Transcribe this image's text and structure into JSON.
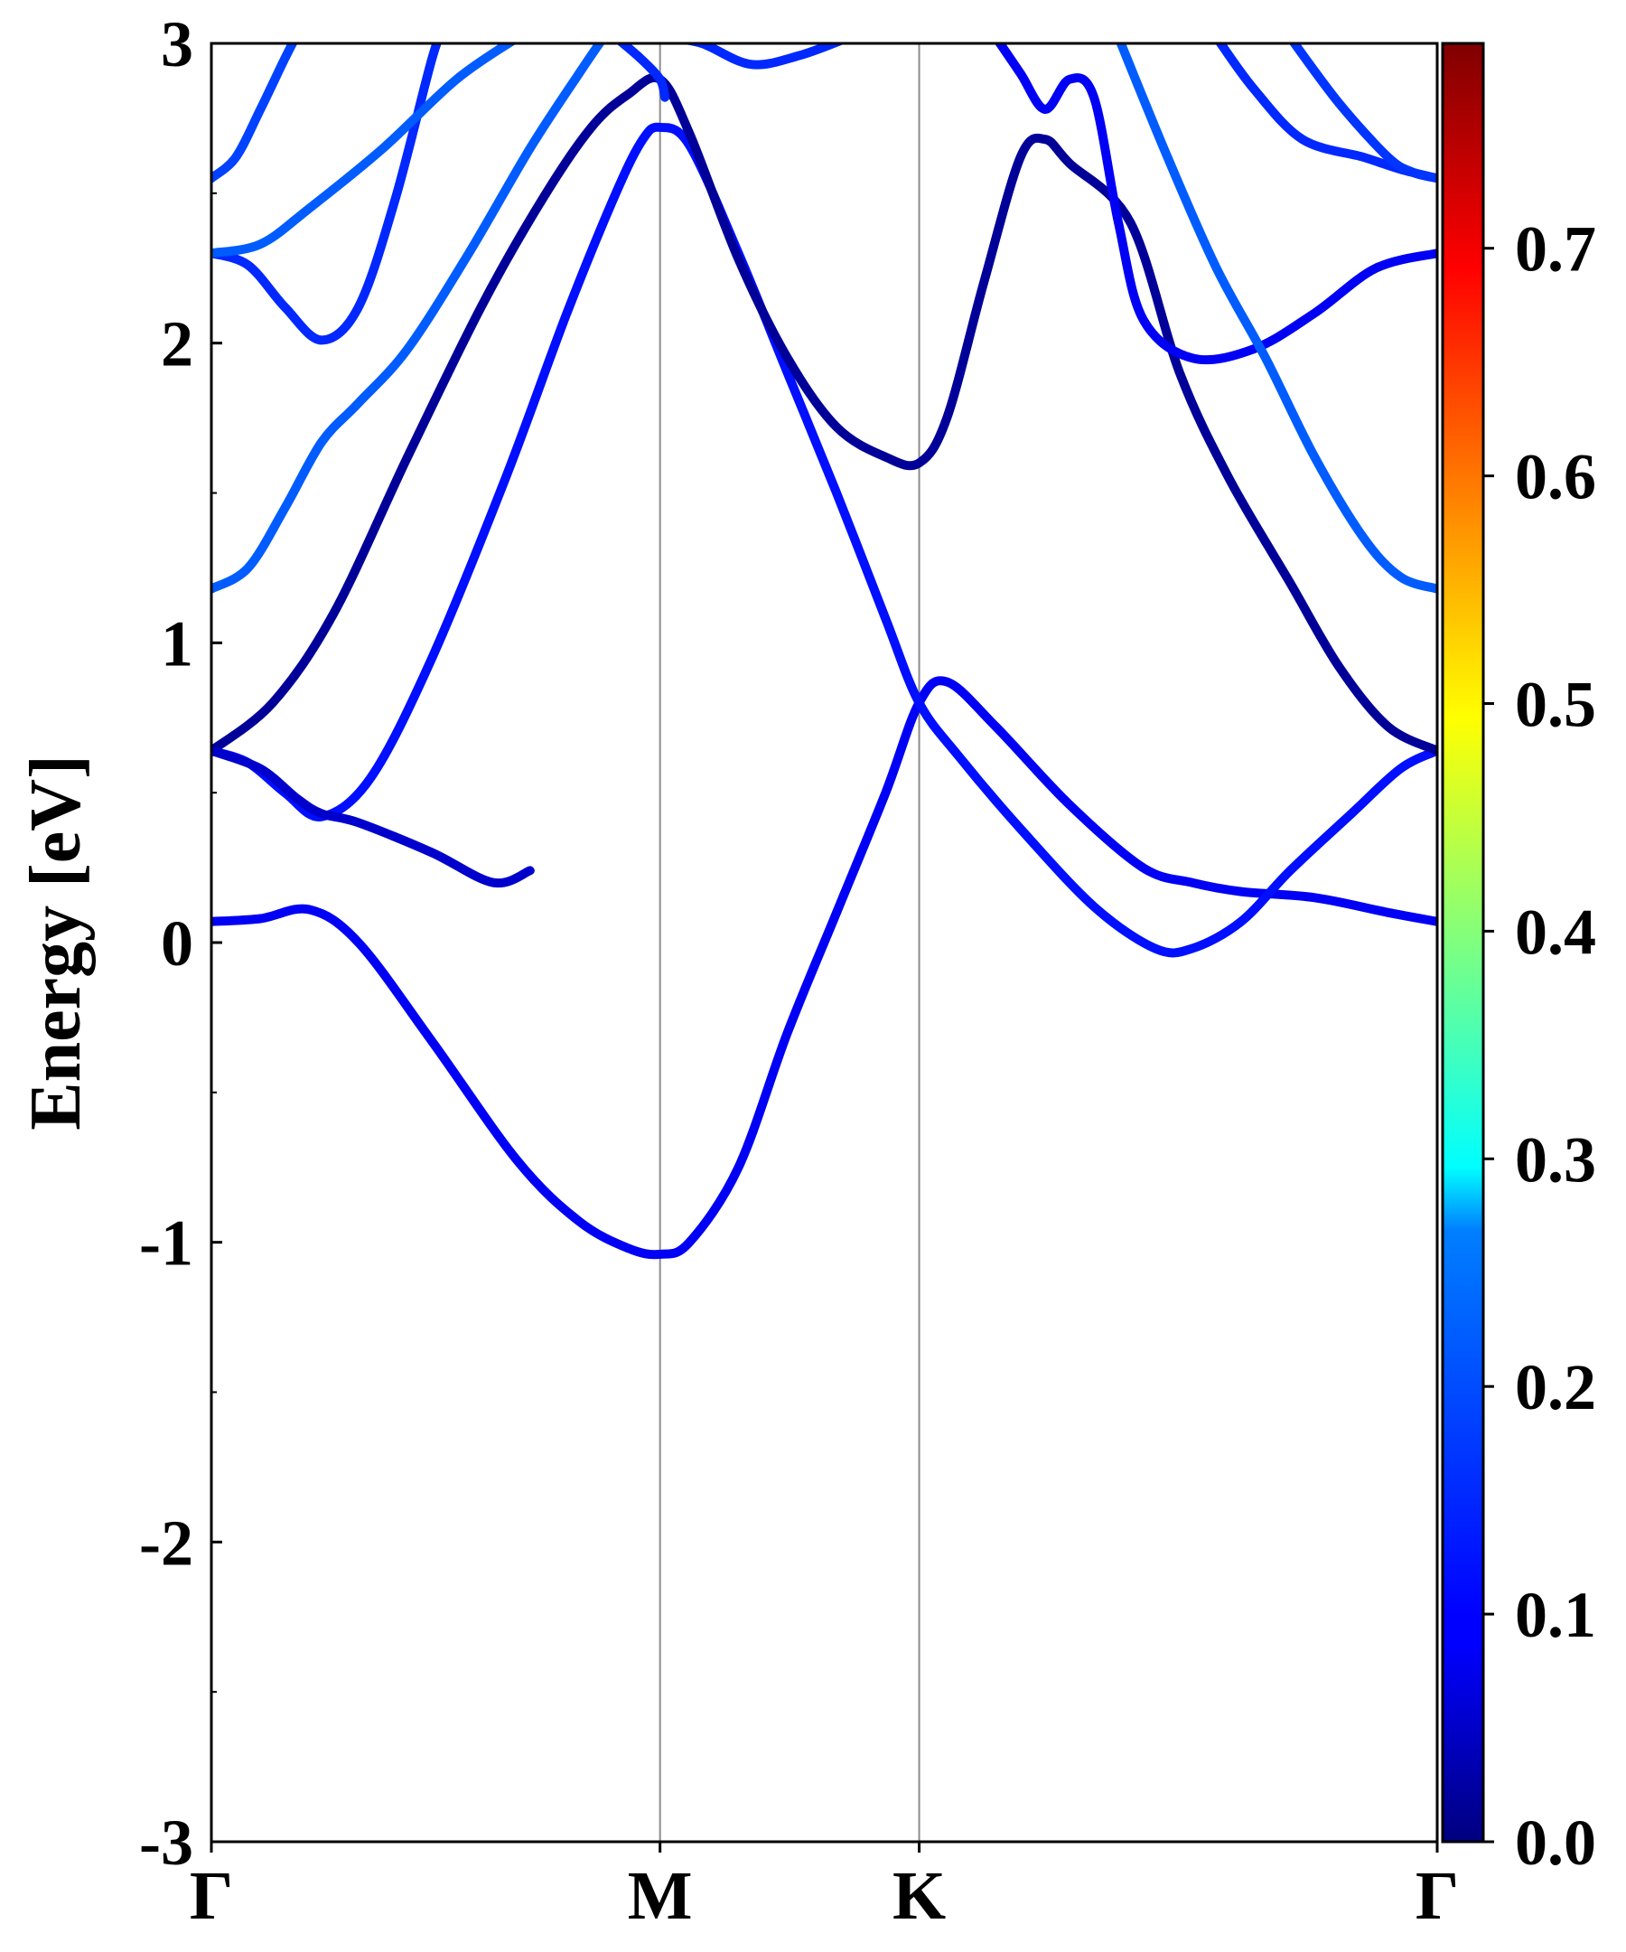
{
  "chart_data": {
    "type": "line",
    "title": "",
    "ylabel": "Energy [eV]",
    "xlabel": "",
    "ylim": [
      -3,
      3
    ],
    "xlim": [
      0,
      1
    ],
    "y_ticks": [
      {
        "value": -3,
        "label": "-3"
      },
      {
        "value": -2,
        "label": "-2"
      },
      {
        "value": -1,
        "label": "-1"
      },
      {
        "value": 0,
        "label": "0"
      },
      {
        "value": 1,
        "label": "1"
      },
      {
        "value": 2,
        "label": "2"
      },
      {
        "value": 3,
        "label": "3"
      }
    ],
    "y_minor_ticks": [
      -2.5,
      -1.5,
      -0.5,
      0.5,
      1.5,
      2.5
    ],
    "kpoints": [
      {
        "pos": 0.0,
        "label": "Γ"
      },
      {
        "pos": 0.366,
        "label": "M"
      },
      {
        "pos": 0.5774,
        "label": "K"
      },
      {
        "pos": 1.0,
        "label": "Γ"
      }
    ],
    "colorbar": {
      "colormap": "jet",
      "min": 0.0,
      "max": 0.79,
      "ticks": [
        {
          "value": 0.0,
          "label": "0.0"
        },
        {
          "value": 0.1,
          "label": "0.1"
        },
        {
          "value": 0.2,
          "label": "0.2"
        },
        {
          "value": 0.3,
          "label": "0.3"
        },
        {
          "value": 0.4,
          "label": "0.4"
        },
        {
          "value": 0.5,
          "label": "0.5"
        },
        {
          "value": 0.6,
          "label": "0.6"
        },
        {
          "value": 0.7,
          "label": "0.7"
        }
      ]
    },
    "series": [
      {
        "weight": 0.09,
        "points": [
          [
            0,
            0.07
          ],
          [
            0.04,
            0.08
          ],
          [
            0.08,
            0.11
          ],
          [
            0.12,
            0.0
          ],
          [
            0.18,
            -0.33
          ],
          [
            0.25,
            -0.73
          ],
          [
            0.3,
            -0.93
          ],
          [
            0.34,
            -1.02
          ],
          [
            0.366,
            -1.04
          ],
          [
            0.39,
            -1.0
          ],
          [
            0.43,
            -0.75
          ],
          [
            0.47,
            -0.3
          ],
          [
            0.51,
            0.1
          ],
          [
            0.55,
            0.5
          ],
          [
            0.5774,
            0.8
          ],
          [
            0.6,
            0.87
          ],
          [
            0.64,
            0.72
          ],
          [
            0.7,
            0.46
          ],
          [
            0.76,
            0.25
          ],
          [
            0.8,
            0.2
          ],
          [
            0.84,
            0.17
          ],
          [
            0.9,
            0.15
          ],
          [
            0.96,
            0.1
          ],
          [
            1.0,
            0.07
          ]
        ]
      },
      {
        "weight": 0.11,
        "points": [
          [
            0,
            0.64
          ],
          [
            0.03,
            0.6
          ],
          [
            0.06,
            0.5
          ],
          [
            0.09,
            0.42
          ],
          [
            0.13,
            0.55
          ],
          [
            0.18,
            0.95
          ],
          [
            0.24,
            1.55
          ],
          [
            0.29,
            2.1
          ],
          [
            0.33,
            2.5
          ],
          [
            0.352,
            2.68
          ],
          [
            0.366,
            2.72
          ],
          [
            0.39,
            2.66
          ],
          [
            0.43,
            2.3
          ],
          [
            0.47,
            1.9
          ],
          [
            0.51,
            1.5
          ],
          [
            0.55,
            1.08
          ],
          [
            0.5774,
            0.8
          ],
          [
            0.61,
            0.62
          ],
          [
            0.66,
            0.38
          ],
          [
            0.72,
            0.12
          ],
          [
            0.77,
            -0.02
          ],
          [
            0.8,
            -0.02
          ],
          [
            0.84,
            0.07
          ],
          [
            0.88,
            0.24
          ],
          [
            0.93,
            0.43
          ],
          [
            0.97,
            0.58
          ],
          [
            1.0,
            0.64
          ]
        ]
      },
      {
        "weight": 0.02,
        "points": [
          [
            0,
            0.64
          ],
          [
            0.05,
            0.8
          ],
          [
            0.1,
            1.1
          ],
          [
            0.16,
            1.62
          ],
          [
            0.22,
            2.12
          ],
          [
            0.27,
            2.48
          ],
          [
            0.31,
            2.72
          ],
          [
            0.34,
            2.83
          ],
          [
            0.366,
            2.88
          ],
          [
            0.39,
            2.7
          ],
          [
            0.43,
            2.28
          ],
          [
            0.47,
            1.95
          ],
          [
            0.51,
            1.72
          ],
          [
            0.55,
            1.62
          ],
          [
            0.5774,
            1.6
          ],
          [
            0.6,
            1.75
          ],
          [
            0.63,
            2.2
          ],
          [
            0.66,
            2.62
          ],
          [
            0.68,
            2.68
          ],
          [
            0.7,
            2.6
          ],
          [
            0.75,
            2.4
          ],
          [
            0.79,
            1.9
          ],
          [
            0.83,
            1.55
          ],
          [
            0.88,
            1.2
          ],
          [
            0.92,
            0.92
          ],
          [
            0.96,
            0.72
          ],
          [
            1.0,
            0.64
          ]
        ]
      },
      {
        "weight": 0.06,
        "points": [
          [
            0,
            0.64
          ],
          [
            0.04,
            0.58
          ],
          [
            0.07,
            0.48
          ],
          [
            0.09,
            0.43
          ],
          [
            0.12,
            0.4
          ],
          [
            0.18,
            0.3
          ],
          [
            0.23,
            0.2
          ],
          [
            0.26,
            0.24
          ]
        ]
      },
      {
        "weight": 0.17,
        "points": [
          [
            0,
            1.18
          ],
          [
            0.03,
            1.25
          ],
          [
            0.06,
            1.45
          ],
          [
            0.09,
            1.67
          ],
          [
            0.12,
            1.8
          ],
          [
            0.16,
            1.98
          ],
          [
            0.21,
            2.3
          ],
          [
            0.26,
            2.65
          ],
          [
            0.3,
            2.9
          ],
          [
            0.32,
            3.02
          ]
        ]
      },
      {
        "weight": 0.13,
        "points": [
          [
            0,
            2.3
          ],
          [
            0.03,
            2.26
          ],
          [
            0.06,
            2.12
          ],
          [
            0.09,
            2.01
          ],
          [
            0.12,
            2.12
          ],
          [
            0.15,
            2.48
          ],
          [
            0.18,
            2.95
          ],
          [
            0.19,
            3.05
          ]
        ]
      },
      {
        "weight": 0.17,
        "points": [
          [
            0,
            2.3
          ],
          [
            0.04,
            2.33
          ],
          [
            0.08,
            2.45
          ],
          [
            0.14,
            2.65
          ],
          [
            0.2,
            2.88
          ],
          [
            0.25,
            3.02
          ]
        ]
      },
      {
        "weight": 0.15,
        "points": [
          [
            0,
            2.55
          ],
          [
            0.02,
            2.62
          ],
          [
            0.04,
            2.78
          ],
          [
            0.06,
            2.95
          ],
          [
            0.07,
            3.03
          ]
        ]
      },
      {
        "weight": 0.13,
        "points": [
          [
            0.33,
            3.02
          ],
          [
            0.35,
            2.95
          ],
          [
            0.366,
            2.88
          ],
          [
            0.37,
            2.82
          ]
        ]
      },
      {
        "weight": 0.13,
        "points": [
          [
            0.37,
            3.02
          ],
          [
            0.4,
            3.0
          ],
          [
            0.44,
            2.93
          ],
          [
            0.48,
            2.96
          ],
          [
            0.52,
            3.02
          ]
        ]
      },
      {
        "weight": 0.09,
        "points": [
          [
            0.64,
            3.02
          ],
          [
            0.66,
            2.9
          ],
          [
            0.68,
            2.78
          ],
          [
            0.7,
            2.88
          ],
          [
            0.72,
            2.82
          ],
          [
            0.74,
            2.4
          ],
          [
            0.76,
            2.08
          ],
          [
            0.8,
            1.95
          ],
          [
            0.85,
            1.98
          ],
          [
            0.9,
            2.1
          ],
          [
            0.95,
            2.25
          ],
          [
            1.0,
            2.3
          ]
        ]
      },
      {
        "weight": 0.17,
        "points": [
          [
            0.74,
            3.02
          ],
          [
            0.78,
            2.62
          ],
          [
            0.82,
            2.25
          ],
          [
            0.86,
            1.95
          ],
          [
            0.9,
            1.62
          ],
          [
            0.94,
            1.35
          ],
          [
            0.97,
            1.22
          ],
          [
            1.0,
            1.18
          ]
        ]
      },
      {
        "weight": 0.13,
        "points": [
          [
            0.82,
            3.02
          ],
          [
            0.85,
            2.85
          ],
          [
            0.89,
            2.68
          ],
          [
            0.94,
            2.62
          ],
          [
            0.97,
            2.58
          ],
          [
            1.0,
            2.55
          ]
        ]
      },
      {
        "weight": 0.14,
        "points": [
          [
            0.88,
            3.02
          ],
          [
            0.92,
            2.8
          ],
          [
            0.96,
            2.62
          ],
          [
            0.98,
            2.57
          ],
          [
            1.0,
            2.55
          ]
        ]
      }
    ]
  }
}
